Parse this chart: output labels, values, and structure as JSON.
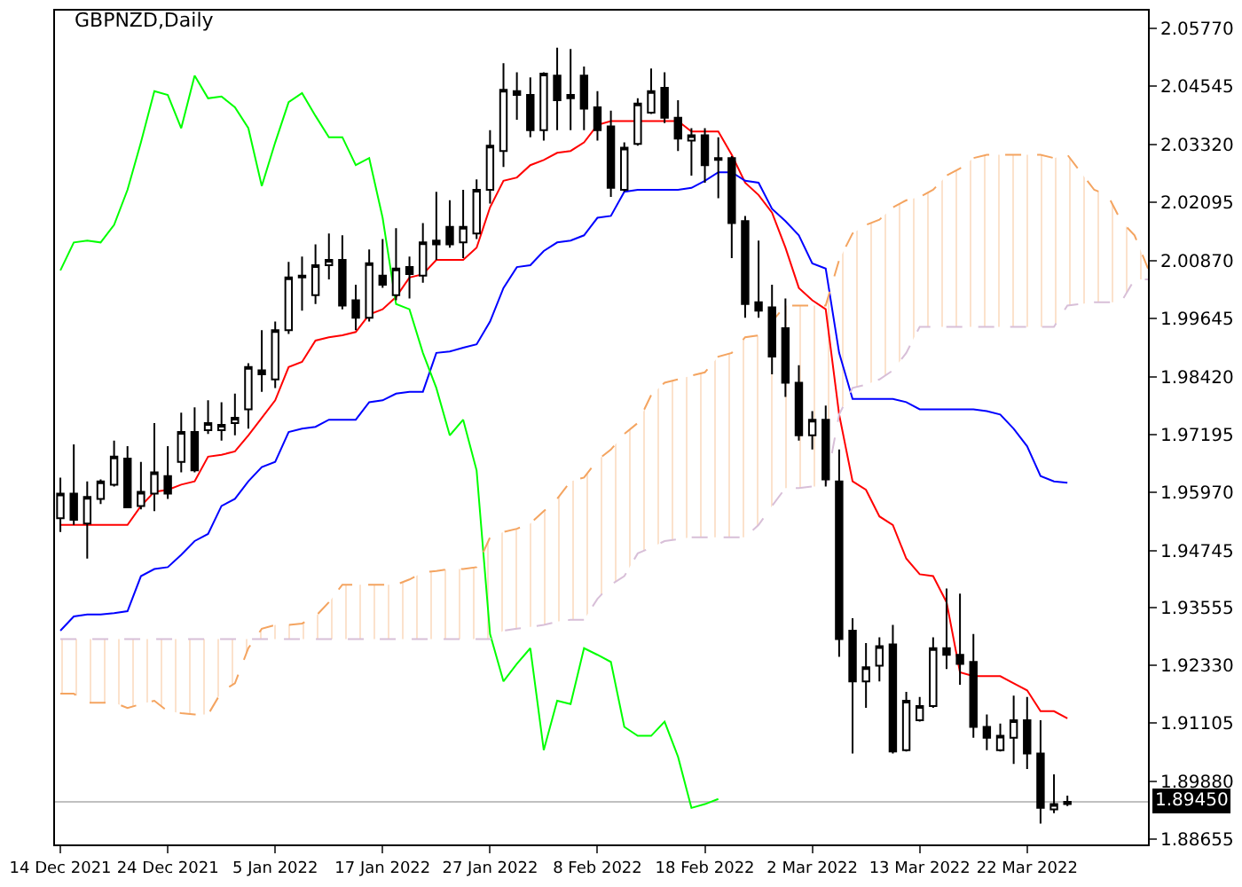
{
  "chart_data": {
    "type": "candlestick",
    "title": "GBPNZD,Daily",
    "categories": [
      "14 Dec 2021",
      null,
      null,
      null,
      null,
      null,
      null,
      null,
      "24 Dec 2021",
      null,
      null,
      null,
      null,
      null,
      null,
      null,
      "5 Jan 2022",
      null,
      null,
      null,
      null,
      null,
      null,
      null,
      "17 Jan 2022",
      null,
      null,
      null,
      null,
      null,
      null,
      null,
      "27 Jan 2022",
      null,
      null,
      null,
      null,
      null,
      null,
      null,
      "8 Feb 2022",
      null,
      null,
      null,
      null,
      null,
      null,
      null,
      "18 Feb 2022",
      null,
      null,
      null,
      null,
      null,
      null,
      null,
      "2 Mar 2022",
      null,
      null,
      null,
      null,
      null,
      null,
      null,
      "13 Mar 2022",
      null,
      null,
      null,
      null,
      null,
      null,
      null,
      "22 Mar 2022",
      null,
      null,
      null,
      null,
      null,
      null,
      null,
      null,
      null
    ],
    "ohlc": [
      [
        1.9543,
        1.9629,
        1.9514,
        1.9595
      ],
      [
        1.9595,
        1.9699,
        1.9529,
        1.954
      ],
      [
        1.9532,
        1.9621,
        1.9458,
        1.9588
      ],
      [
        1.9584,
        1.9625,
        1.9573,
        1.9621
      ],
      [
        1.9614,
        1.9707,
        1.961,
        1.9673
      ],
      [
        1.9669,
        1.9695,
        1.9566,
        1.9566
      ],
      [
        1.9569,
        1.9662,
        1.9562,
        1.9599
      ],
      [
        1.9595,
        1.9744,
        1.9558,
        1.964
      ],
      [
        1.9632,
        1.9695,
        1.9584,
        1.9595
      ],
      [
        1.9662,
        1.9766,
        1.964,
        1.9725
      ],
      [
        1.9725,
        1.9777,
        1.964,
        1.9644
      ],
      [
        1.9729,
        1.9792,
        1.9721,
        1.9744
      ],
      [
        1.9729,
        1.9788,
        1.9707,
        1.974
      ],
      [
        1.9744,
        1.9806,
        1.9718,
        1.9755
      ],
      [
        1.9773,
        1.987,
        1.9732,
        1.9862
      ],
      [
        1.9855,
        1.994,
        1.981,
        1.9847
      ],
      [
        1.9836,
        1.9958,
        1.9818,
        1.994
      ],
      [
        1.994,
        2.0084,
        1.9932,
        2.0051
      ],
      [
        2.0055,
        2.0095,
        1.9981,
        2.0051
      ],
      [
        2.0014,
        2.0121,
        1.9995,
        2.0077
      ],
      [
        2.0077,
        2.0144,
        2.0047,
        2.0088
      ],
      [
        2.0088,
        2.014,
        1.9984,
        1.9992
      ],
      [
        2.0003,
        2.0036,
        1.994,
        1.9966
      ],
      [
        1.9966,
        2.011,
        1.9958,
        2.0081
      ],
      [
        2.0055,
        2.0132,
        2.0029,
        2.0036
      ],
      [
        2.0014,
        2.0155,
        2.0003,
        2.007
      ],
      [
        2.0073,
        2.0095,
        2.0007,
        2.0058
      ],
      [
        2.0055,
        2.0166,
        2.004,
        2.0125
      ],
      [
        2.0129,
        2.0232,
        2.0088,
        2.0121
      ],
      [
        2.0158,
        2.0214,
        2.0114,
        2.0121
      ],
      [
        2.0125,
        2.0236,
        2.0092,
        2.0158
      ],
      [
        2.0144,
        2.0258,
        2.0132,
        2.0236
      ],
      [
        2.0236,
        2.0362,
        2.0207,
        2.0329
      ],
      [
        2.0318,
        2.0503,
        2.0284,
        2.0447
      ],
      [
        2.0444,
        2.0484,
        2.0384,
        2.0436
      ],
      [
        2.0436,
        2.0473,
        2.0347,
        2.0362
      ],
      [
        2.0362,
        2.0484,
        2.034,
        2.0481
      ],
      [
        2.0477,
        2.0536,
        2.0362,
        2.0425
      ],
      [
        2.0436,
        2.0533,
        2.0362,
        2.0429
      ],
      [
        2.0477,
        2.0496,
        2.0362,
        2.0407
      ],
      [
        2.041,
        2.0444,
        2.034,
        2.0362
      ],
      [
        2.037,
        2.0403,
        2.0221,
        2.024
      ],
      [
        2.0236,
        2.0336,
        2.0232,
        2.0325
      ],
      [
        2.0333,
        2.0429,
        2.0329,
        2.0418
      ],
      [
        2.0399,
        2.0492,
        2.0396,
        2.0444
      ],
      [
        2.0451,
        2.0484,
        2.0377,
        2.0388
      ],
      [
        2.0388,
        2.0425,
        2.0318,
        2.0344
      ],
      [
        2.034,
        2.0366,
        2.0266,
        2.0351
      ],
      [
        2.0351,
        2.0366,
        2.0251,
        2.0288
      ],
      [
        2.0303,
        2.0347,
        2.0218,
        2.0299
      ],
      [
        2.0303,
        2.0307,
        2.0092,
        2.0166
      ],
      [
        2.017,
        2.0181,
        1.9966,
        1.9995
      ],
      [
        1.9999,
        2.0129,
        1.9966,
        1.9981
      ],
      [
        1.9988,
        2.0036,
        1.9847,
        1.9884
      ],
      [
        1.9944,
        2.0007,
        1.9799,
        1.9829
      ],
      [
        1.9829,
        1.9866,
        1.9707,
        1.9718
      ],
      [
        1.9718,
        1.9769,
        1.9688,
        1.9751
      ],
      [
        1.9751,
        1.9781,
        1.961,
        1.9625
      ],
      [
        1.9621,
        1.9688,
        1.9251,
        1.9288
      ],
      [
        1.9306,
        1.9332,
        1.9047,
        1.9199
      ],
      [
        1.9199,
        1.928,
        1.9143,
        1.9229
      ],
      [
        1.9232,
        1.9292,
        1.9199,
        1.9273
      ],
      [
        1.9277,
        1.9318,
        1.9047,
        1.9051
      ],
      [
        1.9054,
        1.9177,
        1.9051,
        1.9158
      ],
      [
        1.9117,
        1.9166,
        1.9114,
        1.9147
      ],
      [
        1.9147,
        1.9292,
        1.9143,
        1.9269
      ],
      [
        1.9269,
        1.9395,
        1.9225,
        1.9255
      ],
      [
        1.9255,
        1.9384,
        1.9192,
        1.9236
      ],
      [
        1.924,
        1.9299,
        1.908,
        1.9103
      ],
      [
        1.9103,
        1.9129,
        1.9054,
        1.908
      ],
      [
        1.9054,
        1.911,
        1.9051,
        1.9084
      ],
      [
        1.908,
        1.9169,
        1.9025,
        1.9117
      ],
      [
        1.9117,
        1.9166,
        1.9014,
        1.9047
      ],
      [
        1.9047,
        1.9117,
        1.8899,
        1.8932
      ],
      [
        1.8929,
        1.9003,
        1.8921,
        1.894
      ],
      [
        1.894,
        1.8958,
        1.8936,
        1.8945
      ],
      null,
      null,
      null,
      null,
      null,
      null
    ],
    "series": [
      {
        "type": "line",
        "color": "#ff0000",
        "values": [
          1.9529,
          1.9529,
          1.9529,
          1.9529,
          1.9529,
          1.9529,
          1.9569,
          1.9599,
          1.9603,
          1.9614,
          1.9621,
          1.9673,
          1.9677,
          1.9684,
          1.9718,
          1.9755,
          1.9792,
          1.9862,
          1.9873,
          1.9918,
          1.9925,
          1.9929,
          1.9936,
          1.9973,
          1.9984,
          2.001,
          2.0051,
          2.0058,
          2.0088,
          2.0088,
          2.0088,
          2.0114,
          2.0199,
          2.0255,
          2.0262,
          2.0288,
          2.0299,
          2.0314,
          2.0318,
          2.0336,
          2.0373,
          2.0381,
          2.0381,
          2.0381,
          2.0381,
          2.0381,
          2.0381,
          2.0359,
          2.0359,
          2.0359,
          2.031,
          2.0251,
          2.0225,
          2.0188,
          2.0114,
          2.0029,
          2.0003,
          1.9984,
          1.9762,
          1.9621,
          1.9603,
          1.9547,
          1.9529,
          1.9458,
          1.9425,
          1.9421,
          1.9366,
          1.9218,
          1.921,
          1.921,
          1.921,
          1.9195,
          1.918,
          1.9136,
          1.9136,
          1.9121,
          null,
          null,
          null,
          null,
          null,
          null
        ]
      },
      {
        "type": "line",
        "color": "#0000ff",
        "values": [
          1.9306,
          1.9336,
          1.934,
          1.934,
          1.9343,
          1.9347,
          1.9421,
          1.9436,
          1.944,
          1.9466,
          1.9495,
          1.951,
          1.9569,
          1.9584,
          1.9621,
          1.9651,
          1.9662,
          1.9725,
          1.9732,
          1.9736,
          1.9751,
          1.9751,
          1.9751,
          1.9788,
          1.9792,
          1.9806,
          1.981,
          1.981,
          1.9892,
          1.9895,
          1.9903,
          1.991,
          1.9958,
          2.0029,
          2.0073,
          2.0077,
          2.0107,
          2.0125,
          2.0129,
          2.014,
          2.0177,
          2.0181,
          2.0232,
          2.0236,
          2.0236,
          2.0236,
          2.0236,
          2.024,
          2.0255,
          2.0273,
          2.0273,
          2.0255,
          2.0251,
          2.0196,
          2.017,
          2.014,
          2.0081,
          2.007,
          1.9892,
          1.9795,
          1.9795,
          1.9795,
          1.9795,
          1.9788,
          1.9773,
          1.9773,
          1.9773,
          1.9773,
          1.9773,
          1.9769,
          1.9762,
          1.9732,
          1.9695,
          1.9632,
          1.9621,
          1.9618,
          null,
          null,
          null,
          null,
          null,
          null
        ]
      },
      {
        "type": "line",
        "color": "#00ff00",
        "values": [
          2.0066,
          2.0125,
          2.0129,
          2.0125,
          2.0162,
          2.0236,
          2.0336,
          2.0444,
          2.0436,
          2.0366,
          2.0477,
          2.0429,
          2.0433,
          2.041,
          2.0366,
          2.0244,
          2.0336,
          2.0421,
          2.044,
          2.0392,
          2.0347,
          2.0347,
          2.0288,
          2.0303,
          2.0177,
          1.9995,
          1.9984,
          1.9892,
          1.9818,
          1.9718,
          1.9751,
          1.9644,
          1.9299,
          1.9199,
          1.9236,
          1.9269,
          1.9054,
          1.9158,
          1.9151,
          1.9269,
          1.9255,
          1.924,
          1.9103,
          1.9084,
          1.9084,
          1.9114,
          1.904,
          1.8932,
          1.894,
          1.8951,
          null,
          null,
          null,
          null,
          null,
          null,
          null,
          null,
          null,
          null,
          null,
          null,
          null,
          null,
          null,
          null,
          null,
          null,
          null,
          null,
          null,
          null,
          null,
          null,
          null,
          null,
          null,
          null,
          null,
          null,
          null,
          null
        ]
      },
      {
        "type": "line",
        "color": "#f4a460",
        "line_style": "dashed",
        "lower": [
          1.9288,
          1.9288,
          1.9288,
          1.9288,
          1.9288,
          1.9288,
          1.9288,
          1.9288,
          1.9288,
          1.9288,
          1.9288,
          1.9288,
          1.9288,
          1.9288,
          1.9288,
          1.9288,
          1.9288,
          1.9288,
          1.9288,
          1.9288,
          1.9288,
          1.9288,
          1.9288,
          1.9288,
          1.9288,
          1.9288,
          1.9288,
          1.9288,
          1.9288,
          1.9288,
          1.9288,
          1.9288,
          1.9288,
          1.9306,
          1.931,
          1.9314,
          1.9318,
          1.9325,
          1.9329,
          1.9329,
          1.9373,
          1.9403,
          1.9421,
          1.9469,
          1.9481,
          1.9495,
          1.9499,
          1.9503,
          1.9503,
          1.9503,
          1.9503,
          1.9503,
          1.9529,
          1.9569,
          1.9607,
          1.9607,
          1.961,
          1.961,
          1.9762,
          1.9818,
          1.9825,
          1.9836,
          1.9855,
          1.9892,
          1.9947,
          1.9947,
          1.9947,
          1.9947,
          1.9947,
          1.9947,
          1.9947,
          1.9947,
          1.9947,
          1.9947,
          1.9947,
          1.9992,
          1.9995,
          1.9999,
          1.9999,
          1.9999,
          2.0047,
          2.0047
        ],
        "upper": [
          1.9173,
          1.9173,
          1.9154,
          1.9154,
          1.9154,
          1.9143,
          1.9151,
          1.9158,
          1.9136,
          1.9132,
          1.9129,
          1.9129,
          1.9177,
          1.9195,
          1.9269,
          1.931,
          1.9318,
          1.9318,
          1.9321,
          1.9336,
          1.9366,
          1.9403,
          1.9403,
          1.9403,
          1.9403,
          1.9403,
          1.9414,
          1.9429,
          1.9432,
          1.9436,
          1.9436,
          1.944,
          1.9503,
          1.9514,
          1.9521,
          1.9532,
          1.9558,
          1.9584,
          1.9621,
          1.9629,
          1.9666,
          1.9688,
          1.9721,
          1.9744,
          1.9803,
          1.9829,
          1.9836,
          1.9844,
          1.9851,
          1.9884,
          1.9892,
          1.9925,
          1.9929,
          1.9958,
          1.9992,
          1.9992,
          1.9992,
          1.9992,
          2.0088,
          2.0144,
          2.0162,
          2.0173,
          2.0199,
          2.0214,
          2.0221,
          2.0236,
          2.0266,
          2.0281,
          2.0303,
          2.031,
          2.031,
          2.031,
          2.031,
          2.031,
          2.0303,
          2.031,
          2.0273,
          2.0236,
          2.0225,
          2.017,
          2.014,
          2.007
        ],
        "values": [
          1.9173,
          1.9173,
          1.9154,
          1.9154,
          1.9154,
          1.9143,
          1.9151,
          1.9158,
          1.9136,
          1.9132,
          1.9129,
          1.9129,
          1.9177,
          1.9195,
          1.9269,
          1.931,
          1.9318,
          1.9318,
          1.9321,
          1.9336,
          1.9366,
          1.9403,
          1.9403,
          1.9403,
          1.9403,
          1.9403,
          1.9414,
          1.9429,
          1.9432,
          1.9436,
          1.9436,
          1.944,
          1.9503,
          1.9514,
          1.9521,
          1.9532,
          1.9558,
          1.9584,
          1.9621,
          1.9629,
          1.9666,
          1.9688,
          1.9721,
          1.9744,
          1.9803,
          1.9829,
          1.9836,
          1.9844,
          1.9851,
          1.9884,
          1.9892,
          1.9925,
          1.9929,
          1.9958,
          1.9992,
          1.9992,
          1.9992,
          1.9992,
          2.0088,
          2.0144,
          2.0162,
          2.0173,
          2.0199,
          2.0214,
          2.0221,
          2.0236,
          2.0266,
          2.0281,
          2.0303,
          2.031,
          2.031,
          2.031,
          2.031,
          2.031,
          2.0303,
          2.031,
          2.0273,
          2.0236,
          2.0225,
          2.017,
          2.014,
          2.007
        ]
      },
      {
        "type": "line",
        "color": "#d8bfd8",
        "line_style": "dashed",
        "values": [
          1.9288,
          1.9288,
          1.9288,
          1.9288,
          1.9288,
          1.9288,
          1.9288,
          1.9288,
          1.9288,
          1.9288,
          1.9288,
          1.9288,
          1.9288,
          1.9288,
          1.9288,
          1.9288,
          1.9288,
          1.9288,
          1.9288,
          1.9288,
          1.9288,
          1.9288,
          1.9288,
          1.9288,
          1.9288,
          1.9288,
          1.9288,
          1.9288,
          1.9288,
          1.9288,
          1.9288,
          1.9288,
          1.9288,
          1.9306,
          1.931,
          1.9314,
          1.9318,
          1.9325,
          1.9329,
          1.9329,
          1.9373,
          1.9403,
          1.9421,
          1.9469,
          1.9481,
          1.9495,
          1.9499,
          1.9503,
          1.9503,
          1.9503,
          1.9503,
          1.9503,
          1.9529,
          1.9569,
          1.9607,
          1.9607,
          1.961,
          1.961,
          1.9762,
          1.9818,
          1.9825,
          1.9836,
          1.9855,
          1.9892,
          1.9947,
          1.9947,
          1.9947,
          1.9947,
          1.9947,
          1.9947,
          1.9947,
          1.9947,
          1.9947,
          1.9947,
          1.9947,
          1.9992,
          1.9995,
          1.9999,
          1.9999,
          1.9999,
          2.0047,
          2.0047
        ]
      }
    ],
    "ylim": [
      1.8855,
      2.0614
    ],
    "yticks": [
      {
        "value": 2.0577,
        "label": "2.05770"
      },
      {
        "value": 2.04545,
        "label": "2.04545"
      },
      {
        "value": 2.0332,
        "label": "2.03320"
      },
      {
        "value": 2.02095,
        "label": "2.02095"
      },
      {
        "value": 2.0087,
        "label": "2.00870"
      },
      {
        "value": 1.99645,
        "label": "1.99645"
      },
      {
        "value": 1.9842,
        "label": "1.98420"
      },
      {
        "value": 1.97195,
        "label": "1.97195"
      },
      {
        "value": 1.9597,
        "label": "1.95970"
      },
      {
        "value": 1.94745,
        "label": "1.94745"
      },
      {
        "value": 1.93555,
        "label": "1.93555"
      },
      {
        "value": 1.9233,
        "label": "1.92330"
      },
      {
        "value": 1.91105,
        "label": "1.91105"
      },
      {
        "value": 1.8988,
        "label": "1.89880"
      },
      {
        "value": 1.88655,
        "label": "1.88655"
      }
    ],
    "ref_lines": [
      {
        "axis": "y",
        "value": 1.8945,
        "label": "1.89450",
        "color": "#c0c0c0"
      }
    ]
  }
}
